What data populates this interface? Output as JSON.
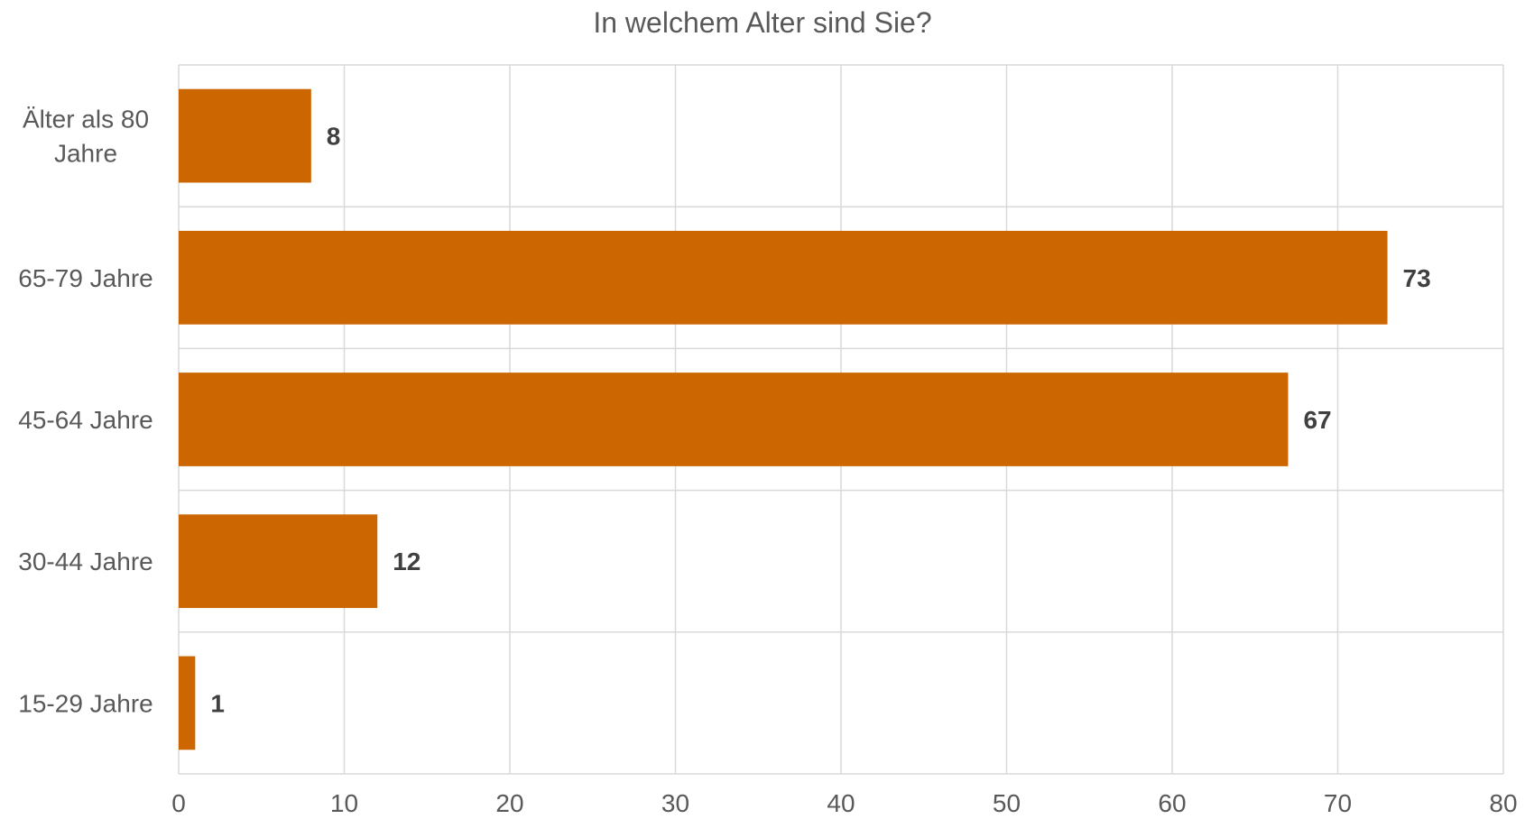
{
  "chart_data": {
    "type": "bar",
    "orientation": "horizontal",
    "title": "In welchem Alter sind Sie?",
    "categories": [
      "Älter als 80 Jahre",
      "65-79 Jahre",
      "45-64 Jahre",
      "30-44 Jahre",
      "15-29 Jahre"
    ],
    "values": [
      8,
      73,
      67,
      12,
      1
    ],
    "xlim": [
      0,
      80
    ],
    "x_ticks": [
      0,
      10,
      20,
      30,
      40,
      50,
      60,
      70,
      80
    ],
    "xlabel": "",
    "ylabel": "",
    "data_labels": true,
    "grid": true,
    "legend": "none",
    "bar_color": "#CC6600"
  }
}
